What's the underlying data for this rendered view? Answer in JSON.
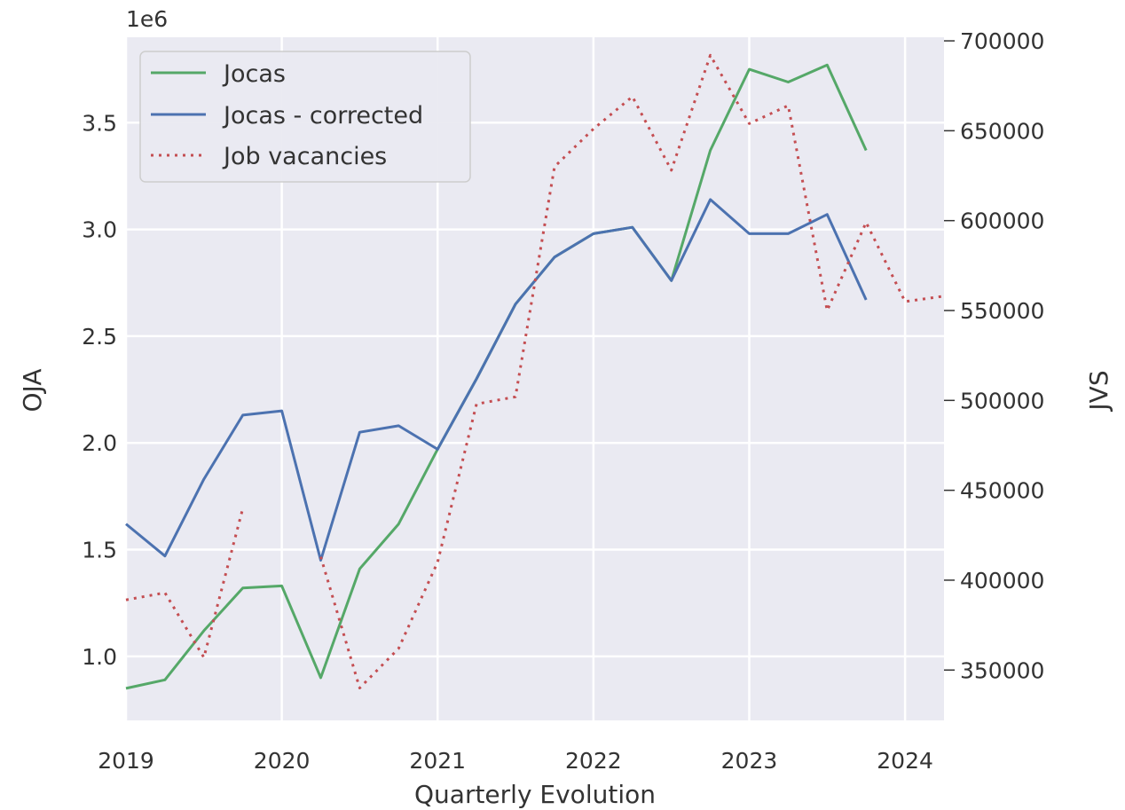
{
  "chart_data": {
    "type": "line",
    "xlabel": "Quarterly Evolution",
    "ylabel_left": "OJA",
    "ylabel_right": "JVS",
    "left_offset_text": "1e6",
    "xlim": [
      2019.0,
      2024.25
    ],
    "ylim_left": [
      0.7,
      3.9
    ],
    "ylim_right": [
      322000,
      702000
    ],
    "x_ticks": [
      2019,
      2020,
      2021,
      2022,
      2023,
      2024
    ],
    "x_tick_labels": [
      "2019",
      "2020",
      "2021",
      "2022",
      "2023",
      "2024"
    ],
    "y_left_ticks": [
      1.0,
      1.5,
      2.0,
      2.5,
      3.0,
      3.5
    ],
    "y_left_tick_labels": [
      "1.0",
      "1.5",
      "2.0",
      "2.5",
      "3.0",
      "3.5"
    ],
    "y_right_ticks": [
      350000,
      400000,
      450000,
      500000,
      550000,
      600000,
      650000,
      700000
    ],
    "y_right_tick_labels": [
      "350000",
      "400000",
      "450000",
      "500000",
      "550000",
      "600000",
      "650000",
      "700000"
    ],
    "grid": true,
    "legend_position": "top-left",
    "series": [
      {
        "name": "Jocas",
        "axis": "left",
        "color": "#55a868",
        "style": "solid",
        "x": [
          2019.0,
          2019.25,
          2019.5,
          2019.75,
          2020.0,
          2020.25,
          2020.5,
          2020.75,
          2021.0,
          2021.25,
          2021.5,
          2021.75,
          2022.0,
          2022.25,
          2022.5,
          2022.75,
          2023.0,
          2023.25,
          2023.5,
          2023.75
        ],
        "values": [
          0.85,
          0.89,
          1.12,
          1.32,
          1.33,
          0.9,
          1.41,
          1.62,
          1.97,
          2.3,
          2.65,
          2.87,
          2.98,
          3.01,
          2.76,
          3.37,
          3.75,
          3.69,
          3.77,
          3.37
        ]
      },
      {
        "name": "Jocas - corrected",
        "axis": "left",
        "color": "#4c72b0",
        "style": "solid",
        "x": [
          2019.0,
          2019.25,
          2019.5,
          2019.75,
          2020.0,
          2020.25,
          2020.5,
          2020.75,
          2021.0,
          2021.25,
          2021.5,
          2021.75,
          2022.0,
          2022.25,
          2022.5,
          2022.75,
          2023.0,
          2023.25,
          2023.5,
          2023.75
        ],
        "values": [
          1.62,
          1.47,
          1.83,
          2.13,
          2.15,
          1.45,
          2.05,
          2.08,
          1.97,
          2.3,
          2.65,
          2.87,
          2.98,
          3.01,
          2.76,
          3.14,
          2.98,
          2.98,
          3.07,
          2.67
        ]
      },
      {
        "name": "Job vacancies",
        "axis": "right",
        "color": "#c44e52",
        "style": "dotted",
        "segments": [
          {
            "x": [
              2019.0,
              2019.25,
              2019.5,
              2019.75
            ],
            "values": [
              389000,
              393000,
              357000,
              440000
            ]
          },
          {
            "x": [
              2020.25,
              2020.5,
              2020.75,
              2021.0,
              2021.25,
              2021.5,
              2021.75,
              2022.0,
              2022.25,
              2022.5,
              2022.75,
              2023.0,
              2023.25,
              2023.5,
              2023.75,
              2024.0,
              2024.25
            ],
            "values": [
              413000,
              340000,
              362000,
              410000,
              498000,
              502000,
              630000,
              651000,
              669000,
              628000,
              692000,
              654000,
              664000,
              550000,
              599000,
              555000,
              558000
            ]
          }
        ]
      }
    ]
  }
}
